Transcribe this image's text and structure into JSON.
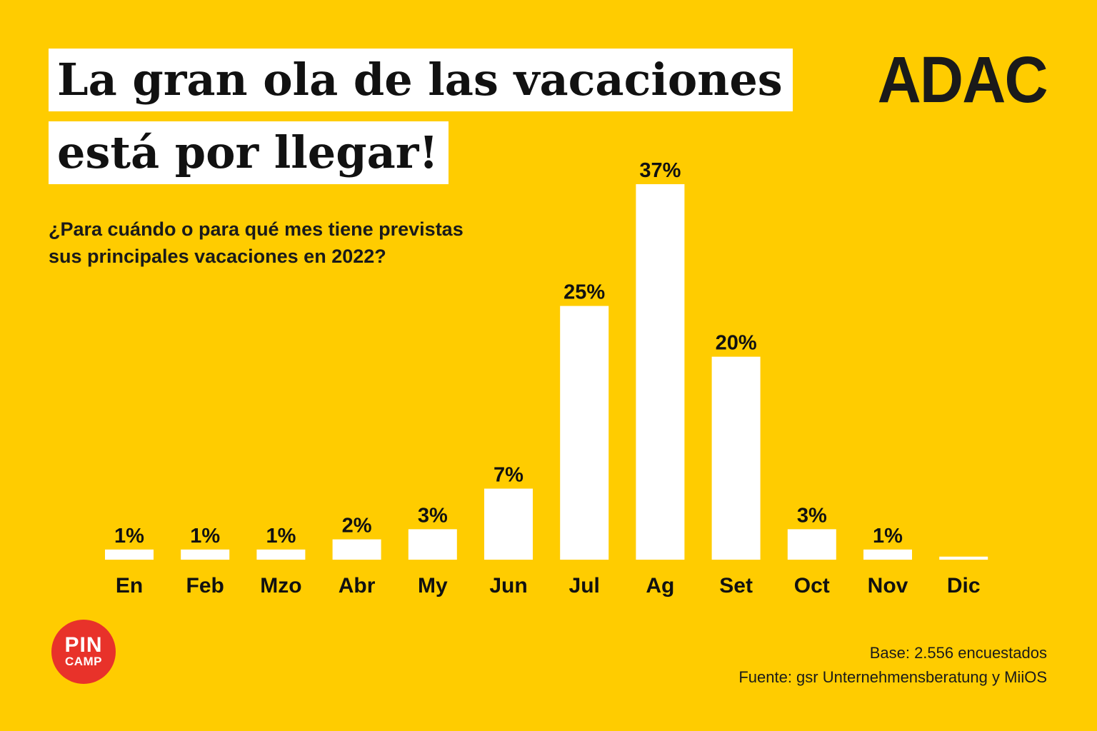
{
  "header": {
    "title_line1": "La gran ola de las vacaciones",
    "title_line2": "está por llegar!",
    "brand": "ADAC"
  },
  "subtitle_line1": "¿Para cuándo o para qué mes tiene previstas",
  "subtitle_line2": "sus principales vacaciones en 2022?",
  "chart_data": {
    "type": "bar",
    "title": "La gran ola de las vacaciones está por llegar!",
    "subtitle": "¿Para cuándo o para qué mes tiene previstas sus principales vacaciones en 2022?",
    "categories": [
      "En",
      "Feb",
      "Mzo",
      "Abr",
      "My",
      "Jun",
      "Jul",
      "Ag",
      "Set",
      "Oct",
      "Nov",
      "Dic"
    ],
    "values": [
      1,
      1,
      1,
      2,
      3,
      7,
      25,
      37,
      20,
      3,
      1,
      0.3
    ],
    "labels": [
      "1%",
      "1%",
      "1%",
      "2%",
      "3%",
      "7%",
      "25%",
      "37%",
      "20%",
      "3%",
      "1%",
      ""
    ],
    "bar_color": "#FFFFFF",
    "background_color": "#FFCC00",
    "grid": false,
    "axes_visible": false
  },
  "logo": {
    "top": "PIN",
    "bottom": "CAMP",
    "color": "#E8322A"
  },
  "footer": {
    "base": "Base: 2.556 encuestados",
    "source": "Fuente: gsr Unternehmensberatung y MiiOS"
  }
}
